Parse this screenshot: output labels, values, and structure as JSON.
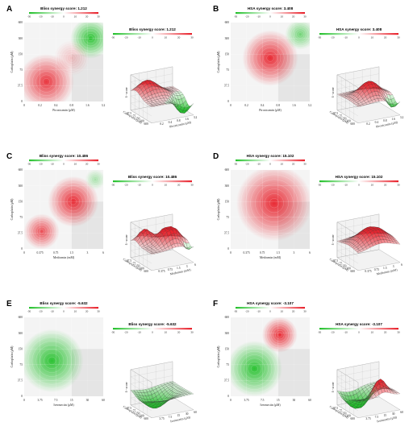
{
  "colors": {
    "red": "#e8202a",
    "green": "#22c02a",
    "grid": "#bbbbbb",
    "frame": "#888888"
  },
  "chart_data": [
    {
      "type": "heatmap",
      "letter": "A",
      "title": "Bliss synergy score: 1.212",
      "surface_title": "Bliss synergy score: 1.212",
      "xlabel": "Piroxicamin (μM)",
      "ylabel": "Carboplatin (μM)",
      "zlabel": "δ - score",
      "xticks": [
        "0",
        "0.2",
        "0.4",
        "0.8",
        "1.6",
        "3.2"
      ],
      "yticks": [
        "0",
        "37.5",
        "75",
        "150",
        "300",
        "600"
      ],
      "colorbar_ticks": [
        "-30",
        "-20",
        "-10",
        "0",
        "10",
        "20",
        "30"
      ],
      "blobs": [
        {
          "x": 0.28,
          "y": 0.25,
          "score": 28,
          "spread": 0.22
        },
        {
          "x": 0.84,
          "y": 0.8,
          "score": -30,
          "spread": 0.16
        },
        {
          "x": 0.6,
          "y": 0.55,
          "score": 8,
          "spread": 0.14
        }
      ]
    },
    {
      "type": "heatmap",
      "letter": "B",
      "title": "HSA synergy score: 3.408",
      "surface_title": "HSA synergy score: 3.408",
      "xlabel": "Piroxicamin (μM)",
      "ylabel": "Carboplatin (μM)",
      "zlabel": "δ - score",
      "xticks": [
        "0",
        "0.2",
        "0.4",
        "0.8",
        "1.6",
        "3.2"
      ],
      "yticks": [
        "0",
        "37.5",
        "75",
        "150",
        "300",
        "600"
      ],
      "colorbar_ticks": [
        "-30",
        "-20",
        "-10",
        "0",
        "10",
        "20",
        "30"
      ],
      "blobs": [
        {
          "x": 0.5,
          "y": 0.55,
          "score": 30,
          "spread": 0.22
        },
        {
          "x": 0.88,
          "y": 0.85,
          "score": -20,
          "spread": 0.12
        }
      ]
    },
    {
      "type": "heatmap",
      "letter": "C",
      "title": "Bliss synergy score: 10.486",
      "surface_title": "Bliss synergy score: 10.486",
      "xlabel": "Metformin (mM)",
      "ylabel": "Carboplatin (μM)",
      "zlabel": "δ - score",
      "xticks": [
        "0",
        "0.375",
        "0.75",
        "1.5",
        "3",
        "6"
      ],
      "yticks": [
        "0",
        "37.5",
        "75",
        "150",
        "300",
        "600"
      ],
      "colorbar_ticks": [
        "-30",
        "-20",
        "-10",
        "0",
        "10",
        "20",
        "30"
      ],
      "blobs": [
        {
          "x": 0.62,
          "y": 0.6,
          "score": 38,
          "spread": 0.2
        },
        {
          "x": 0.22,
          "y": 0.22,
          "score": 25,
          "spread": 0.14
        },
        {
          "x": 0.9,
          "y": 0.88,
          "score": -12,
          "spread": 0.08
        }
      ]
    },
    {
      "type": "heatmap",
      "letter": "D",
      "title": "HSA synergy score: 15.102",
      "surface_title": "HSA synergy score: 15.102",
      "xlabel": "Metformin (mM)",
      "ylabel": "Carboplatin (μM)",
      "zlabel": "δ - score",
      "xticks": [
        "0",
        "0.375",
        "0.75",
        "1.5",
        "3",
        "6"
      ],
      "yticks": [
        "0",
        "37.5",
        "75",
        "150",
        "300",
        "600"
      ],
      "colorbar_ticks": [
        "-30",
        "-20",
        "-10",
        "0",
        "10",
        "20",
        "30"
      ],
      "blobs": [
        {
          "x": 0.55,
          "y": 0.58,
          "score": 34,
          "spread": 0.3
        }
      ]
    },
    {
      "type": "heatmap",
      "letter": "E",
      "title": "Bliss synergy score: -5.632",
      "surface_title": "Bliss synergy score: -5.632",
      "xlabel": "Ivermectin (μM)",
      "ylabel": "Carboplatin (μM)",
      "zlabel": "δ - score",
      "xticks": [
        "0",
        "3.75",
        "7.5",
        "15",
        "30",
        "60"
      ],
      "yticks": [
        "0",
        "37.5",
        "75",
        "150",
        "300",
        "600"
      ],
      "colorbar_ticks": [
        "-30",
        "-20",
        "-10",
        "0",
        "10",
        "20",
        "30"
      ],
      "blobs": [
        {
          "x": 0.35,
          "y": 0.45,
          "score": -30,
          "spread": 0.25
        }
      ]
    },
    {
      "type": "heatmap",
      "letter": "F",
      "title": "HSA synergy score: -3.107",
      "surface_title": "HSA synergy score: -3.107",
      "xlabel": "Ivermectin (μM)",
      "ylabel": "Carboplatin (μM)",
      "zlabel": "δ - score",
      "xticks": [
        "0",
        "3.75",
        "7.5",
        "15",
        "30",
        "60"
      ],
      "yticks": [
        "0",
        "37.5",
        "75",
        "150",
        "300",
        "600"
      ],
      "colorbar_ticks": [
        "-30",
        "-20",
        "-10",
        "0",
        "10",
        "20",
        "30"
      ],
      "blobs": [
        {
          "x": 0.3,
          "y": 0.35,
          "score": -34,
          "spread": 0.22
        },
        {
          "x": 0.62,
          "y": 0.78,
          "score": 30,
          "spread": 0.14
        }
      ]
    }
  ]
}
